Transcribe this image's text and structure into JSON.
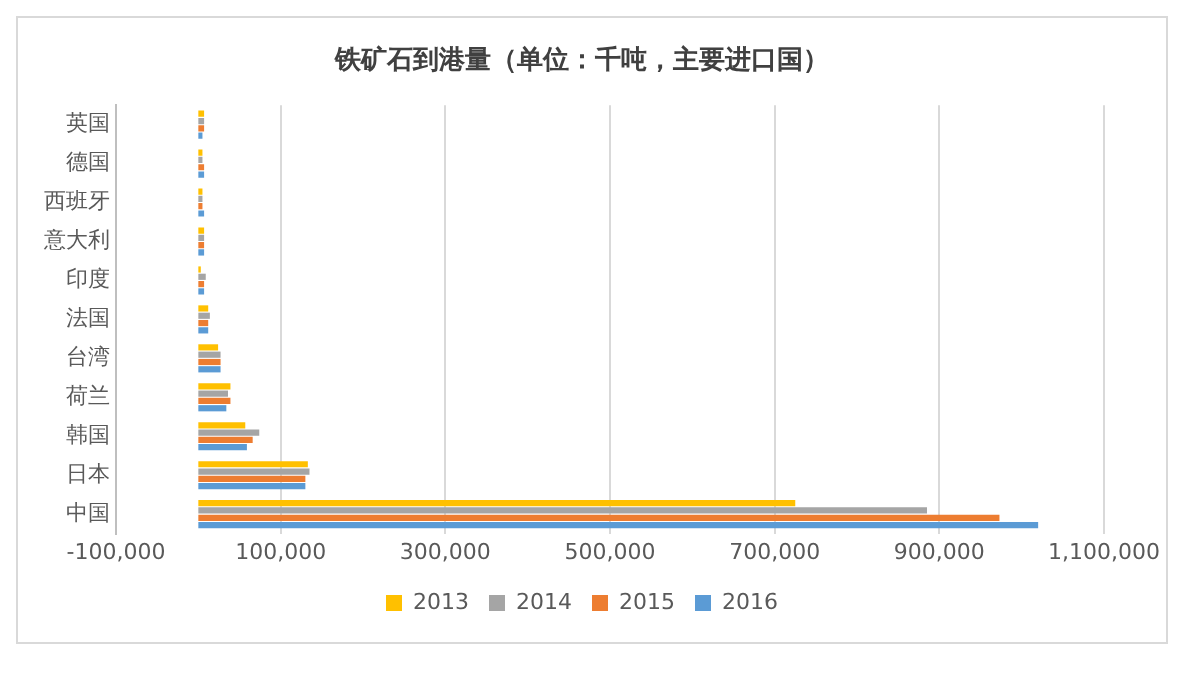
{
  "chart_data": {
    "type": "bar",
    "orientation": "horizontal",
    "title": "铁矿石到港量（单位：千吨，主要进口国）",
    "categories": [
      "英国",
      "德国",
      "西班牙",
      "意大利",
      "印度",
      "法国",
      "台湾",
      "荷兰",
      "韩国",
      "日本",
      "中国"
    ],
    "series": [
      {
        "name": "2013",
        "color": "#ffc000",
        "values": [
          7000,
          5000,
          5000,
          7000,
          3000,
          12000,
          24000,
          39000,
          57000,
          133000,
          725000
        ]
      },
      {
        "name": "2014",
        "color": "#a5a5a5",
        "values": [
          7000,
          5000,
          5000,
          7000,
          9000,
          14000,
          27000,
          36000,
          74000,
          135000,
          885000
        ]
      },
      {
        "name": "2015",
        "color": "#ed7d31",
        "values": [
          7000,
          7000,
          5000,
          7000,
          7000,
          12000,
          27000,
          39000,
          66000,
          130000,
          973000
        ]
      },
      {
        "name": "2016",
        "color": "#5b9bd5",
        "values": [
          5000,
          7000,
          7000,
          7000,
          7000,
          12000,
          27000,
          34000,
          59000,
          130000,
          1020000
        ]
      }
    ],
    "xlim": [
      -100000,
      1100000
    ],
    "xticks": [
      {
        "value": -100000,
        "label": "-100,000"
      },
      {
        "value": 100000,
        "label": "100,000"
      },
      {
        "value": 300000,
        "label": "300,000"
      },
      {
        "value": 500000,
        "label": "500,000"
      },
      {
        "value": 700000,
        "label": "700,000"
      },
      {
        "value": 900000,
        "label": "900,000"
      },
      {
        "value": 1100000,
        "label": "1,100,000"
      }
    ],
    "grid": "x",
    "legend": "bottom"
  }
}
